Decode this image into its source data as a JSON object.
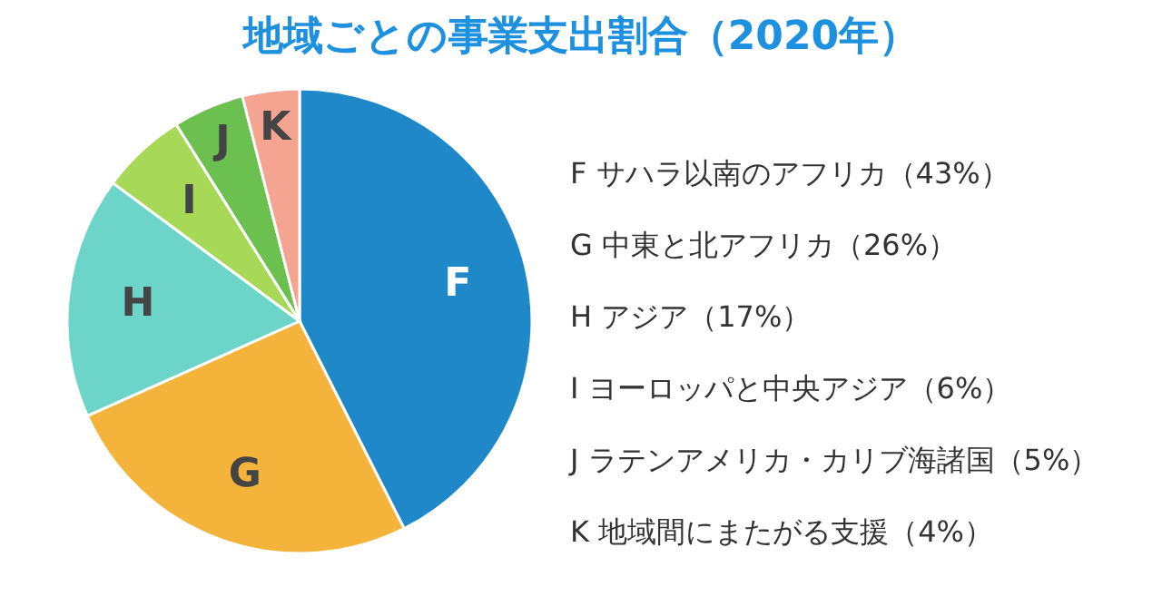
{
  "chart_data": {
    "type": "pie",
    "title": "地域ごとの事業支出割合（2020年）",
    "categories": [
      "F",
      "G",
      "H",
      "I",
      "J",
      "K"
    ],
    "values": [
      43,
      26,
      17,
      6,
      5,
      4
    ],
    "colors": [
      "#1e88c8",
      "#f4b43c",
      "#6cd4c8",
      "#a8d858",
      "#6cc050",
      "#f4a490"
    ],
    "annotations": [
      "F  サハラ以南のアフリカ（43%）",
      "G  中東と北アフリカ（26%）",
      "H  アジア（17%）",
      "I  ヨーロッパと中央アジア（6%）",
      "J  ラテンアメリカ・カリブ海諸国（5%）",
      "K  地域間にまたがる支援（4%）"
    ]
  }
}
